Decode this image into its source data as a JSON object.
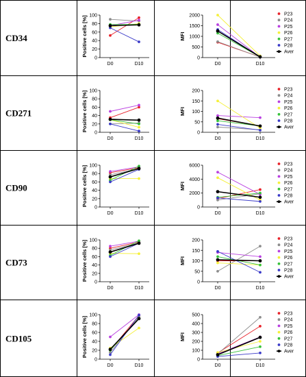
{
  "colors": {
    "P23": "#e8222a",
    "P24": "#8c8c8c",
    "P25": "#b93fe0",
    "P26": "#f5f03a",
    "P27": "#36c23a",
    "P28": "#3a3ac8",
    "Aver": "#000000"
  },
  "chart_data": [
    {
      "type": "line",
      "marker": "CD34",
      "panel": "percent",
      "ylabel": "Positive cells [%]",
      "categories": [
        "D0",
        "D10"
      ],
      "ylim": [
        0,
        100
      ],
      "yticks": [
        0,
        20,
        40,
        60,
        80,
        100
      ],
      "legend": false,
      "series": [
        {
          "name": "P23",
          "values": [
            52,
            94
          ]
        },
        {
          "name": "P24",
          "values": [
            90,
            86
          ]
        },
        {
          "name": "P25",
          "values": [
            75,
            88
          ]
        },
        {
          "name": "P26",
          "values": [
            72,
            80
          ]
        },
        {
          "name": "P27",
          "values": [
            78,
            78
          ]
        },
        {
          "name": "P28",
          "values": [
            70,
            37
          ]
        },
        {
          "name": "Aver",
          "values": [
            75,
            77
          ]
        }
      ]
    },
    {
      "type": "line",
      "marker": "CD34",
      "panel": "mfi",
      "ylabel": "MFI",
      "categories": [
        "D0",
        "D10"
      ],
      "ylim": [
        0,
        2000
      ],
      "yticks": [
        0,
        500,
        1000,
        1500,
        2000
      ],
      "legend": true,
      "series": [
        {
          "name": "P23",
          "values": [
            720,
            30
          ]
        },
        {
          "name": "P24",
          "values": [
            750,
            20
          ]
        },
        {
          "name": "P25",
          "values": [
            1550,
            15
          ]
        },
        {
          "name": "P26",
          "values": [
            2000,
            80
          ]
        },
        {
          "name": "P27",
          "values": [
            1150,
            25
          ]
        },
        {
          "name": "P28",
          "values": [
            1320,
            30
          ]
        },
        {
          "name": "Aver",
          "values": [
            1250,
            35
          ]
        }
      ]
    },
    {
      "type": "line",
      "marker": "CD271",
      "panel": "percent",
      "ylabel": "Positive cells [%]",
      "categories": [
        "D0",
        "D10"
      ],
      "ylim": [
        0,
        100
      ],
      "yticks": [
        0,
        20,
        40,
        60,
        80,
        100
      ],
      "legend": false,
      "series": [
        {
          "name": "P23",
          "values": [
            35,
            60
          ]
        },
        {
          "name": "P24",
          "values": [
            20,
            22
          ]
        },
        {
          "name": "P25",
          "values": [
            50,
            65
          ]
        },
        {
          "name": "P26",
          "values": [
            30,
            12
          ]
        },
        {
          "name": "P27",
          "values": [
            30,
            20
          ]
        },
        {
          "name": "P28",
          "values": [
            20,
            3
          ]
        },
        {
          "name": "Aver",
          "values": [
            31,
            29
          ]
        }
      ]
    },
    {
      "type": "line",
      "marker": "CD271",
      "panel": "mfi",
      "ylabel": "MFI",
      "categories": [
        "D0",
        "D10"
      ],
      "ylim": [
        0,
        200
      ],
      "yticks": [
        0,
        50,
        100,
        150,
        200
      ],
      "legend": true,
      "series": [
        {
          "name": "P23",
          "values": [
            65,
            30
          ]
        },
        {
          "name": "P24",
          "values": [
            25,
            12
          ]
        },
        {
          "name": "P25",
          "values": [
            80,
            70
          ]
        },
        {
          "name": "P26",
          "values": [
            150,
            20
          ]
        },
        {
          "name": "P27",
          "values": [
            55,
            30
          ]
        },
        {
          "name": "P28",
          "values": [
            38,
            10
          ]
        },
        {
          "name": "Aver",
          "values": [
            68,
            30
          ]
        }
      ]
    },
    {
      "type": "line",
      "marker": "CD90",
      "panel": "percent",
      "ylabel": "Positive cells [%]",
      "categories": [
        "D0",
        "D10"
      ],
      "ylim": [
        0,
        100
      ],
      "yticks": [
        0,
        20,
        40,
        60,
        80,
        100
      ],
      "legend": false,
      "series": [
        {
          "name": "P23",
          "values": [
            82,
            94
          ]
        },
        {
          "name": "P24",
          "values": [
            77,
            92
          ]
        },
        {
          "name": "P25",
          "values": [
            85,
            96
          ]
        },
        {
          "name": "P26",
          "values": [
            68,
            68
          ]
        },
        {
          "name": "P27",
          "values": [
            64,
            98
          ]
        },
        {
          "name": "P28",
          "values": [
            60,
            90
          ]
        },
        {
          "name": "Aver",
          "values": [
            72,
            92
          ]
        }
      ]
    },
    {
      "type": "line",
      "marker": "CD90",
      "panel": "mfi",
      "ylabel": "MFI",
      "categories": [
        "D0",
        "D10"
      ],
      "ylim": [
        0,
        6000
      ],
      "yticks": [
        0,
        2000,
        4000,
        6000
      ],
      "legend": true,
      "series": [
        {
          "name": "P23",
          "values": [
            1200,
            2500
          ]
        },
        {
          "name": "P24",
          "values": [
            1000,
            1900
          ]
        },
        {
          "name": "P25",
          "values": [
            5000,
            1800
          ]
        },
        {
          "name": "P26",
          "values": [
            4200,
            1000
          ]
        },
        {
          "name": "P27",
          "values": [
            1400,
            2000
          ]
        },
        {
          "name": "P28",
          "values": [
            1300,
            800
          ]
        },
        {
          "name": "Aver",
          "values": [
            2200,
            1400
          ]
        }
      ]
    },
    {
      "type": "line",
      "marker": "CD73",
      "panel": "percent",
      "ylabel": "Positive cells [%]",
      "categories": [
        "D0",
        "D10"
      ],
      "ylim": [
        0,
        100
      ],
      "yticks": [
        0,
        20,
        40,
        60,
        80,
        100
      ],
      "legend": false,
      "series": [
        {
          "name": "P23",
          "values": [
            80,
            95
          ]
        },
        {
          "name": "P24",
          "values": [
            76,
            93
          ]
        },
        {
          "name": "P25",
          "values": [
            85,
            97
          ]
        },
        {
          "name": "P26",
          "values": [
            68,
            67
          ]
        },
        {
          "name": "P27",
          "values": [
            63,
            98
          ]
        },
        {
          "name": "P28",
          "values": [
            60,
            92
          ]
        },
        {
          "name": "Aver",
          "values": [
            71,
            92
          ]
        }
      ]
    },
    {
      "type": "line",
      "marker": "CD73",
      "panel": "mfi",
      "ylabel": "MFI",
      "categories": [
        "D0",
        "D10"
      ],
      "ylim": [
        0,
        200
      ],
      "yticks": [
        0,
        50,
        100,
        150,
        200
      ],
      "legend": true,
      "series": [
        {
          "name": "P23",
          "values": [
            100,
            100
          ]
        },
        {
          "name": "P24",
          "values": [
            50,
            170
          ]
        },
        {
          "name": "P25",
          "values": [
            140,
            120
          ]
        },
        {
          "name": "P26",
          "values": [
            90,
            80
          ]
        },
        {
          "name": "P27",
          "values": [
            120,
            80
          ]
        },
        {
          "name": "P28",
          "values": [
            145,
            45
          ]
        },
        {
          "name": "Aver",
          "values": [
            105,
            100
          ]
        }
      ]
    },
    {
      "type": "line",
      "marker": "CD105",
      "panel": "percent",
      "ylabel": "Positive cells [%]",
      "categories": [
        "D0",
        "D10"
      ],
      "ylim": [
        0,
        100
      ],
      "yticks": [
        0,
        20,
        40,
        60,
        80,
        100
      ],
      "legend": false,
      "series": [
        {
          "name": "P23",
          "values": [
            20,
            98
          ]
        },
        {
          "name": "P24",
          "values": [
            15,
            95
          ]
        },
        {
          "name": "P25",
          "values": [
            50,
            100
          ]
        },
        {
          "name": "P26",
          "values": [
            25,
            70
          ]
        },
        {
          "name": "P27",
          "values": [
            20,
            92
          ]
        },
        {
          "name": "P28",
          "values": [
            10,
            99
          ]
        },
        {
          "name": "Aver",
          "values": [
            22,
            91
          ]
        }
      ]
    },
    {
      "type": "line",
      "marker": "CD105",
      "panel": "mfi",
      "ylabel": "MFI",
      "categories": [
        "D0",
        "D10"
      ],
      "ylim": [
        0,
        500
      ],
      "yticks": [
        0,
        100,
        200,
        300,
        400,
        500
      ],
      "legend": true,
      "series": [
        {
          "name": "P23",
          "values": [
            70,
            370
          ]
        },
        {
          "name": "P24",
          "values": [
            60,
            470
          ]
        },
        {
          "name": "P25",
          "values": [
            60,
            250
          ]
        },
        {
          "name": "P26",
          "values": [
            75,
            200
          ]
        },
        {
          "name": "P27",
          "values": [
            40,
            140
          ]
        },
        {
          "name": "P28",
          "values": [
            30,
            70
          ]
        },
        {
          "name": "Aver",
          "values": [
            50,
            245
          ]
        }
      ]
    }
  ]
}
